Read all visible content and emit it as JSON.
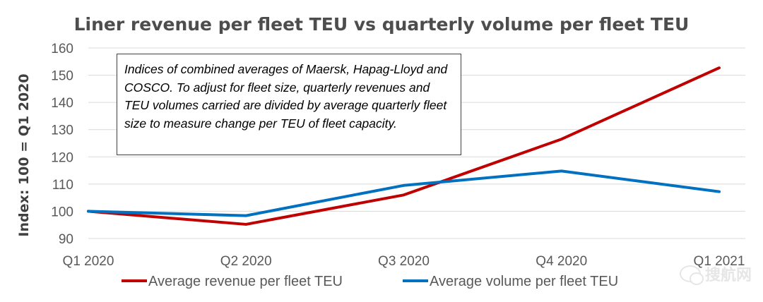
{
  "chart_data": {
    "type": "line",
    "title": "Liner revenue per fleet TEU vs quarterly volume per fleet TEU",
    "xlabel": "",
    "ylabel": "Index: 100 = Q1 2020",
    "categories": [
      "Q1 2020",
      "Q2 2020",
      "Q3 2020",
      "Q4 2020",
      "Q1 2021"
    ],
    "ylim": [
      90,
      160
    ],
    "yticks": [
      90,
      100,
      110,
      120,
      130,
      140,
      150,
      160
    ],
    "grid": true,
    "legend_position": "bottom",
    "series": [
      {
        "name": "Average revenue per fleet TEU",
        "color": "#c00000",
        "values": [
          100,
          95.2,
          106,
          126.5,
          152.7
        ]
      },
      {
        "name": "Average volume per fleet TEU",
        "color": "#0070c0",
        "values": [
          100,
          98.4,
          109.5,
          114.8,
          107.2
        ]
      }
    ],
    "annotation": "Indices of combined averages of Maersk, Hapag-Lloyd and COSCO. To adjust for fleet size, quarterly revenues and TEU volumes carried are divided by average quarterly fleet size to measure change per TEU of fleet capacity."
  },
  "watermark": {
    "text": "搜航网",
    "icon": "wechat-icon"
  }
}
